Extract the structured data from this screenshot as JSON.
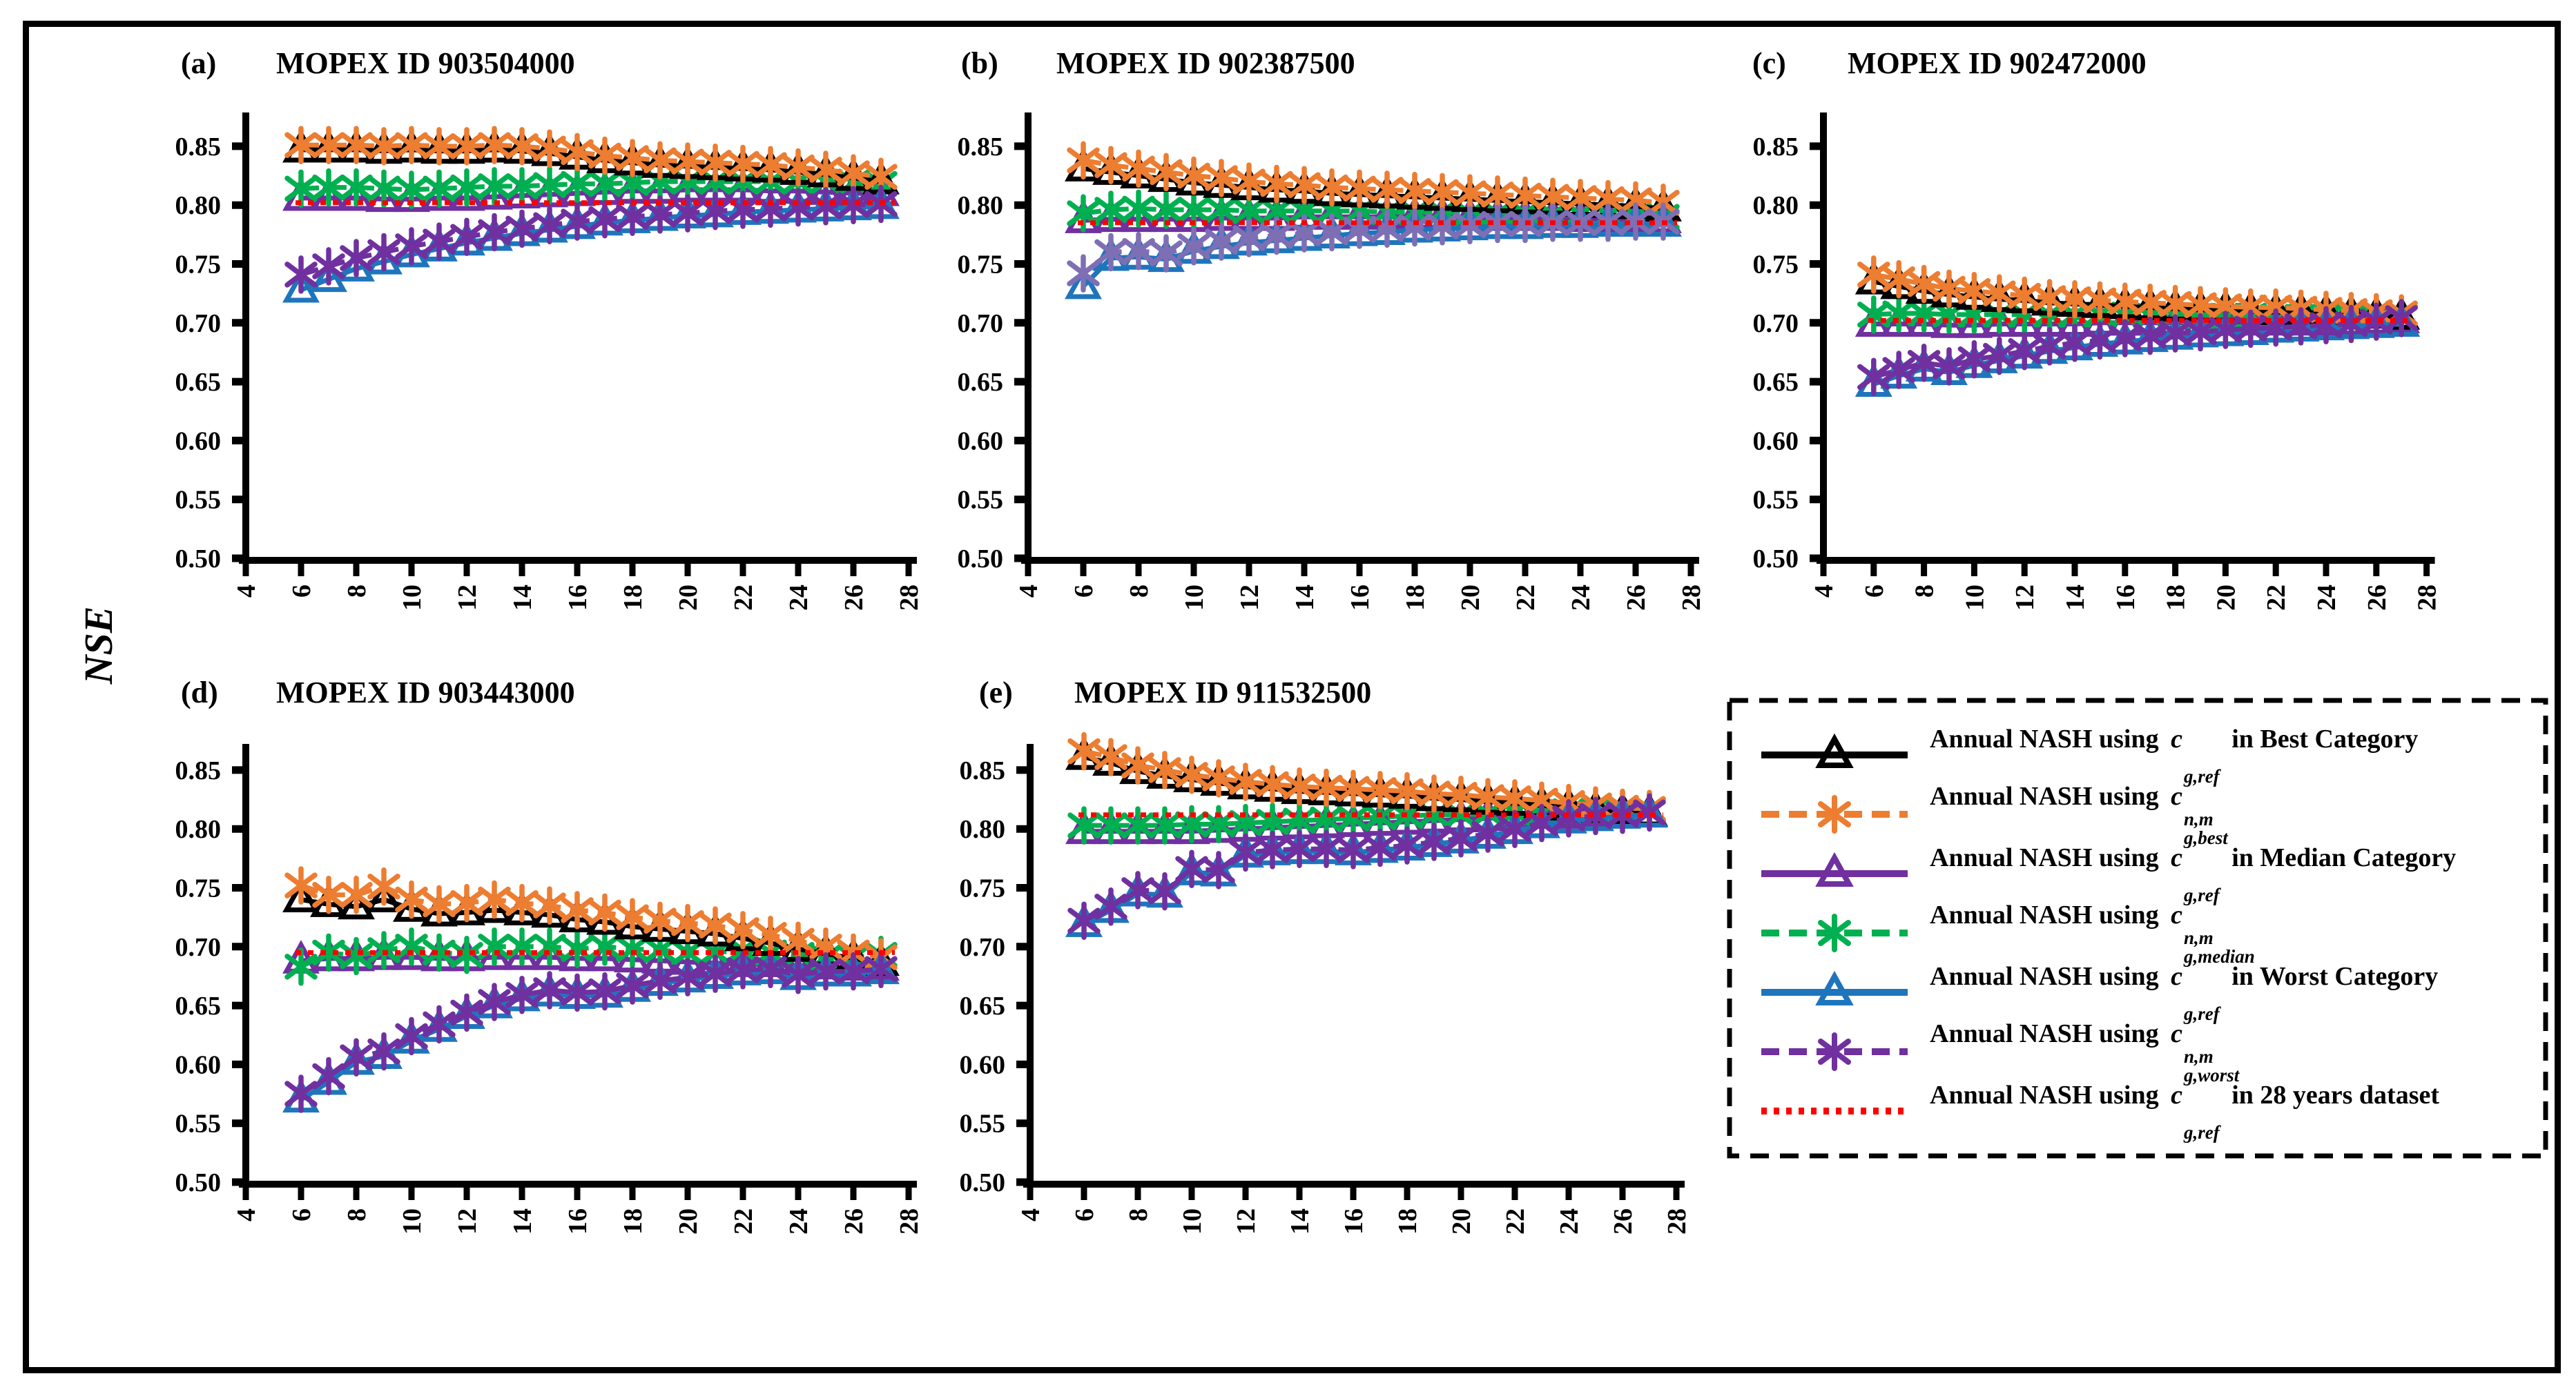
{
  "chart_data": {
    "type": "line",
    "ylabel": "NSE",
    "x_axis": {
      "min": 4,
      "max": 28,
      "ticks": [
        4,
        6,
        8,
        10,
        12,
        14,
        16,
        18,
        20,
        22,
        24,
        26,
        28
      ]
    },
    "y_axis": {
      "min": 0.5,
      "max": 0.88,
      "ticks": [
        0.5,
        0.55,
        0.6,
        0.65,
        0.7,
        0.75,
        0.8,
        0.85
      ],
      "tick_labels": [
        "0.50",
        "0.55",
        "0.60",
        "0.65",
        "0.70",
        "0.75",
        "0.80",
        "0.85"
      ]
    },
    "x_values": [
      6,
      7,
      8,
      9,
      10,
      11,
      12,
      13,
      14,
      15,
      16,
      17,
      18,
      19,
      20,
      21,
      22,
      23,
      24,
      25,
      26,
      27
    ],
    "colors": {
      "best_ref": "#000000",
      "best_nm": "#ED7D31",
      "median_ref": "#7030A0",
      "median_nm": "#00B050",
      "worst_ref": "#1F75BC",
      "worst_nm": "#7030A0",
      "ref28": "#FF0000"
    },
    "panels": [
      {
        "tag": "(a)",
        "title": "MOPEX ID 903504000",
        "series": {
          "best_ref": [
            0.847,
            0.847,
            0.847,
            0.846,
            0.847,
            0.846,
            0.846,
            0.847,
            0.846,
            0.844,
            0.841,
            0.838,
            0.836,
            0.834,
            0.833,
            0.832,
            0.831,
            0.83,
            0.828,
            0.826,
            0.823,
            0.82
          ],
          "best_nm": [
            0.851,
            0.851,
            0.851,
            0.85,
            0.851,
            0.85,
            0.85,
            0.851,
            0.85,
            0.848,
            0.845,
            0.842,
            0.84,
            0.838,
            0.837,
            0.836,
            0.835,
            0.834,
            0.832,
            0.83,
            0.827,
            0.824
          ],
          "median_ref": [
            0.806,
            0.806,
            0.806,
            0.805,
            0.805,
            0.806,
            0.806,
            0.807,
            0.808,
            0.809,
            0.81,
            0.811,
            0.812,
            0.812,
            0.813,
            0.813,
            0.813,
            0.812,
            0.812,
            0.811,
            0.81,
            0.81
          ],
          "median_nm": [
            0.814,
            0.815,
            0.815,
            0.814,
            0.813,
            0.814,
            0.815,
            0.816,
            0.816,
            0.817,
            0.818,
            0.818,
            0.819,
            0.82,
            0.82,
            0.82,
            0.82,
            0.82,
            0.82,
            0.82,
            0.819,
            0.818
          ],
          "worst_ref": [
            0.728,
            0.737,
            0.746,
            0.752,
            0.758,
            0.763,
            0.768,
            0.772,
            0.776,
            0.779,
            0.782,
            0.785,
            0.787,
            0.789,
            0.791,
            0.792,
            0.794,
            0.795,
            0.796,
            0.797,
            0.798,
            0.799
          ],
          "worst_nm": [
            0.741,
            0.748,
            0.755,
            0.76,
            0.765,
            0.769,
            0.773,
            0.777,
            0.78,
            0.783,
            0.786,
            0.788,
            0.79,
            0.792,
            0.793,
            0.795,
            0.796,
            0.797,
            0.798,
            0.799,
            0.8,
            0.801
          ],
          "ref28": 0.802
        }
      },
      {
        "tag": "(b)",
        "title": "MOPEX ID 902387500",
        "series_colors": {
          "worst_nm": "#7E6FB5"
        },
        "series": {
          "best_ref": [
            0.831,
            0.828,
            0.825,
            0.822,
            0.819,
            0.817,
            0.815,
            0.813,
            0.812,
            0.81,
            0.809,
            0.808,
            0.807,
            0.806,
            0.805,
            0.804,
            0.803,
            0.802,
            0.801,
            0.8,
            0.799,
            0.797
          ],
          "best_nm": [
            0.838,
            0.834,
            0.831,
            0.828,
            0.825,
            0.823,
            0.82,
            0.818,
            0.817,
            0.815,
            0.814,
            0.813,
            0.812,
            0.811,
            0.81,
            0.809,
            0.808,
            0.807,
            0.806,
            0.805,
            0.804,
            0.802
          ],
          "median_ref": [
            0.787,
            0.788,
            0.788,
            0.788,
            0.788,
            0.789,
            0.789,
            0.789,
            0.79,
            0.79,
            0.79,
            0.79,
            0.79,
            0.79,
            0.789,
            0.789,
            0.789,
            0.789,
            0.788,
            0.788,
            0.788,
            0.787
          ],
          "median_nm": [
            0.793,
            0.796,
            0.797,
            0.796,
            0.796,
            0.796,
            0.795,
            0.795,
            0.795,
            0.795,
            0.795,
            0.794,
            0.794,
            0.794,
            0.793,
            0.793,
            0.793,
            0.792,
            0.792,
            0.791,
            0.791,
            0.79
          ],
          "worst_ref": [
            0.731,
            0.755,
            0.756,
            0.754,
            0.761,
            0.765,
            0.768,
            0.77,
            0.772,
            0.774,
            0.776,
            0.777,
            0.779,
            0.78,
            0.781,
            0.782,
            0.782,
            0.783,
            0.783,
            0.784,
            0.784,
            0.784
          ],
          "worst_nm": [
            0.742,
            0.76,
            0.761,
            0.759,
            0.765,
            0.769,
            0.772,
            0.774,
            0.776,
            0.777,
            0.779,
            0.78,
            0.781,
            0.782,
            0.783,
            0.784,
            0.784,
            0.785,
            0.785,
            0.785,
            0.786,
            0.786
          ],
          "ref28": 0.785
        }
      },
      {
        "tag": "(c)",
        "title": "MOPEX ID 902472000",
        "series": {
          "best_ref": [
            0.735,
            0.731,
            0.727,
            0.724,
            0.722,
            0.72,
            0.719,
            0.717,
            0.716,
            0.715,
            0.714,
            0.713,
            0.712,
            0.711,
            0.711,
            0.71,
            0.709,
            0.709,
            0.708,
            0.707,
            0.706,
            0.705
          ],
          "best_nm": [
            0.741,
            0.737,
            0.733,
            0.729,
            0.727,
            0.725,
            0.723,
            0.721,
            0.72,
            0.719,
            0.718,
            0.717,
            0.716,
            0.715,
            0.714,
            0.713,
            0.713,
            0.712,
            0.711,
            0.71,
            0.709,
            0.708
          ],
          "median_ref": [
            0.699,
            0.699,
            0.699,
            0.698,
            0.698,
            0.699,
            0.699,
            0.699,
            0.699,
            0.7,
            0.7,
            0.7,
            0.7,
            0.7,
            0.7,
            0.7,
            0.7,
            0.7,
            0.7,
            0.7,
            0.701,
            0.702
          ],
          "median_nm": [
            0.707,
            0.708,
            0.708,
            0.707,
            0.707,
            0.707,
            0.707,
            0.707,
            0.707,
            0.707,
            0.706,
            0.706,
            0.706,
            0.706,
            0.706,
            0.706,
            0.705,
            0.705,
            0.705,
            0.705,
            0.705,
            0.705
          ],
          "worst_ref": [
            0.648,
            0.655,
            0.661,
            0.658,
            0.664,
            0.668,
            0.672,
            0.676,
            0.679,
            0.682,
            0.684,
            0.686,
            0.688,
            0.69,
            0.691,
            0.692,
            0.694,
            0.695,
            0.696,
            0.697,
            0.698,
            0.699
          ],
          "worst_nm": [
            0.654,
            0.66,
            0.666,
            0.663,
            0.669,
            0.672,
            0.676,
            0.68,
            0.683,
            0.685,
            0.687,
            0.689,
            0.691,
            0.692,
            0.694,
            0.695,
            0.696,
            0.697,
            0.698,
            0.699,
            0.701,
            0.704
          ],
          "ref28": 0.702
        }
      },
      {
        "tag": "(d)",
        "title": "MOPEX ID 903443000",
        "series": {
          "best_ref": [
            0.74,
            0.736,
            0.734,
            0.74,
            0.732,
            0.728,
            0.729,
            0.731,
            0.729,
            0.727,
            0.723,
            0.721,
            0.717,
            0.715,
            0.713,
            0.711,
            0.707,
            0.703,
            0.698,
            0.694,
            0.69,
            0.686
          ],
          "best_nm": [
            0.752,
            0.744,
            0.744,
            0.751,
            0.74,
            0.736,
            0.737,
            0.74,
            0.737,
            0.735,
            0.731,
            0.729,
            0.725,
            0.722,
            0.72,
            0.718,
            0.714,
            0.71,
            0.705,
            0.7,
            0.695,
            0.691
          ],
          "median_ref": [
            0.688,
            0.69,
            0.69,
            0.691,
            0.691,
            0.69,
            0.69,
            0.691,
            0.691,
            0.691,
            0.69,
            0.69,
            0.689,
            0.688,
            0.687,
            0.686,
            0.685,
            0.685,
            0.684,
            0.683,
            0.682,
            0.682
          ],
          "median_nm": [
            0.683,
            0.695,
            0.692,
            0.697,
            0.7,
            0.695,
            0.693,
            0.7,
            0.7,
            0.7,
            0.698,
            0.7,
            0.698,
            0.697,
            0.695,
            0.695,
            0.697,
            0.695,
            0.693,
            0.691,
            0.691,
            0.693
          ],
          "worst_ref": [
            0.57,
            0.585,
            0.602,
            0.607,
            0.62,
            0.63,
            0.641,
            0.65,
            0.656,
            0.66,
            0.658,
            0.659,
            0.664,
            0.669,
            0.672,
            0.675,
            0.678,
            0.679,
            0.674,
            0.677,
            0.677,
            0.679
          ],
          "worst_nm": [
            0.575,
            0.59,
            0.606,
            0.611,
            0.624,
            0.634,
            0.644,
            0.653,
            0.659,
            0.663,
            0.661,
            0.662,
            0.667,
            0.671,
            0.674,
            0.677,
            0.68,
            0.681,
            0.676,
            0.679,
            0.679,
            0.681
          ],
          "ref28": 0.695
        }
      },
      {
        "tag": "(e)",
        "title": "MOPEX ID 911532500",
        "series": {
          "best_ref": [
            0.861,
            0.856,
            0.849,
            0.845,
            0.842,
            0.839,
            0.836,
            0.834,
            0.832,
            0.831,
            0.83,
            0.829,
            0.828,
            0.826,
            0.825,
            0.823,
            0.822,
            0.82,
            0.818,
            0.816,
            0.814,
            0.813
          ],
          "best_nm": [
            0.866,
            0.861,
            0.854,
            0.85,
            0.846,
            0.843,
            0.84,
            0.838,
            0.836,
            0.835,
            0.834,
            0.833,
            0.832,
            0.83,
            0.829,
            0.827,
            0.826,
            0.824,
            0.822,
            0.82,
            0.818,
            0.817
          ],
          "median_ref": [
            0.798,
            0.798,
            0.798,
            0.798,
            0.798,
            0.799,
            0.8,
            0.801,
            0.802,
            0.803,
            0.804,
            0.805,
            0.806,
            0.807,
            0.808,
            0.809,
            0.81,
            0.811,
            0.811,
            0.812,
            0.812,
            0.813
          ],
          "median_nm": [
            0.803,
            0.803,
            0.803,
            0.803,
            0.804,
            0.804,
            0.805,
            0.806,
            0.807,
            0.808,
            0.809,
            0.81,
            0.811,
            0.812,
            0.812,
            0.813,
            0.814,
            0.814,
            0.815,
            0.815,
            0.816,
            0.816
          ],
          "worst_ref": [
            0.719,
            0.731,
            0.745,
            0.744,
            0.763,
            0.762,
            0.778,
            0.78,
            0.781,
            0.781,
            0.78,
            0.782,
            0.784,
            0.787,
            0.79,
            0.794,
            0.798,
            0.803,
            0.807,
            0.809,
            0.811,
            0.812
          ],
          "worst_nm": [
            0.722,
            0.734,
            0.748,
            0.747,
            0.766,
            0.765,
            0.78,
            0.782,
            0.783,
            0.783,
            0.782,
            0.784,
            0.786,
            0.789,
            0.792,
            0.796,
            0.8,
            0.805,
            0.809,
            0.811,
            0.812,
            0.814
          ],
          "ref28": 0.812
        }
      }
    ],
    "legend": {
      "items": [
        {
          "key": "best_ref",
          "color": "#000000",
          "line": "solid",
          "marker": "triangle",
          "prefix": "Annual NASH using ",
          "var": "c",
          "sup": "",
          "sub": "g,ref",
          "suffix": " in Best Category"
        },
        {
          "key": "best_nm",
          "color": "#ED7D31",
          "line": "dashed",
          "marker": "asterisk",
          "prefix": "Annual NASH using ",
          "var": "c",
          "sup": "n,m",
          "sub": "g,best",
          "suffix": ""
        },
        {
          "key": "median_ref",
          "color": "#7030A0",
          "line": "solid",
          "marker": "triangle",
          "prefix": "Annual NASH using ",
          "var": "c",
          "sup": "",
          "sub": "g,ref",
          "suffix": " in Median Category"
        },
        {
          "key": "median_nm",
          "color": "#00B050",
          "line": "dashed",
          "marker": "asterisk",
          "prefix": "Annual NASH using ",
          "var": "c",
          "sup": "n,m",
          "sub": "g,median",
          "suffix": ""
        },
        {
          "key": "worst_ref",
          "color": "#1F75BC",
          "line": "solid",
          "marker": "triangle",
          "prefix": "Annual NASH using ",
          "var": "c",
          "sup": "",
          "sub": "g,ref",
          "suffix": " in Worst Category"
        },
        {
          "key": "worst_nm",
          "color": "#7030A0",
          "line": "dashed",
          "marker": "asterisk",
          "prefix": "Annual NASH using ",
          "var": "c",
          "sup": "n,m",
          "sub": "g,worst",
          "suffix": ""
        },
        {
          "key": "ref28",
          "color": "#FF0000",
          "line": "dotted",
          "marker": "none",
          "prefix": "Annual NASH using ",
          "var": "c",
          "sup": "",
          "sub": "g,ref",
          "suffix": " in 28 years dataset"
        }
      ]
    }
  }
}
